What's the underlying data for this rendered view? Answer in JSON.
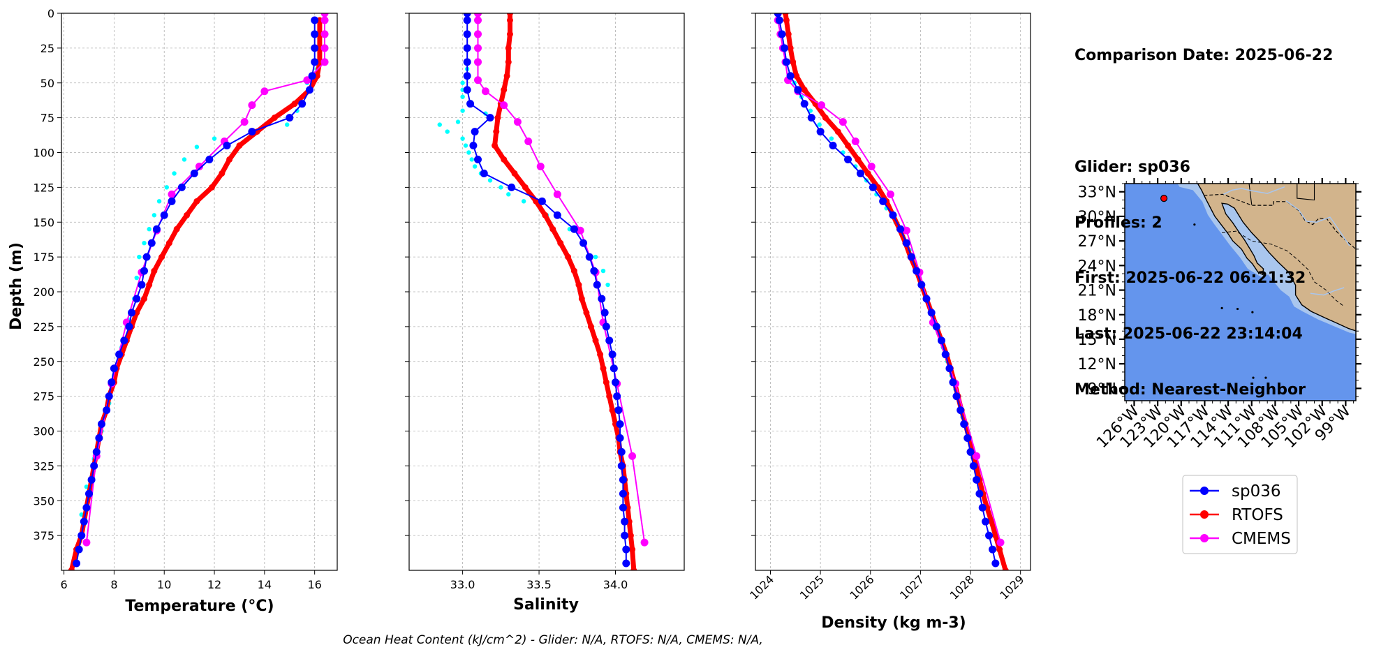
{
  "info": {
    "line1": "Comparison Date: 2025-06-22",
    "line2": "Glider: sp036",
    "line3": "Profiles: 2",
    "line4": "First: 2025-06-22 06:21:32",
    "line5": "Last: 2025-06-22 23:14:04",
    "line6": "Method: Nearest-Neighbor"
  },
  "footer": "Ocean Heat Content (kJ/cm^2) - Glider: N/A,  RTOFS: N/A,  CMEMS: N/A,",
  "colors": {
    "glider": "#0000ff",
    "glider_raw": "#00ffff",
    "rtofs": "#ff0000",
    "cmems": "#ff00ff",
    "ocean": "#6495ed",
    "shelf": "#a9c6ee",
    "land": "#d2b48c"
  },
  "legend": [
    {
      "label": "sp036",
      "color": "#0000ff"
    },
    {
      "label": "RTOFS",
      "color": "#ff0000"
    },
    {
      "label": "CMEMS",
      "color": "#ff00ff"
    }
  ],
  "chart_data": [
    {
      "type": "line",
      "xlabel": "Temperature (°C)",
      "ylabel": "Depth (m)",
      "xlim": [
        5.9,
        16.9
      ],
      "ylim": [
        400,
        0
      ],
      "xticks": [
        6,
        8,
        10,
        12,
        14,
        16
      ],
      "yticks": [
        0,
        25,
        50,
        75,
        100,
        125,
        150,
        175,
        200,
        225,
        250,
        275,
        300,
        325,
        350,
        375
      ],
      "grid": true,
      "series": [
        {
          "name": "sp036",
          "depth": [
            5,
            15,
            25,
            35,
            45,
            55,
            65,
            75,
            85,
            95,
            105,
            115,
            125,
            135,
            145,
            155,
            165,
            175,
            185,
            195,
            205,
            215,
            225,
            235,
            245,
            255,
            265,
            275,
            285,
            295,
            305,
            315,
            325,
            335,
            345,
            355,
            365,
            375,
            385,
            395
          ],
          "values": [
            16.0,
            16.0,
            16.0,
            16.0,
            15.9,
            15.8,
            15.5,
            15.0,
            13.5,
            12.5,
            11.8,
            11.2,
            10.7,
            10.3,
            10.0,
            9.7,
            9.5,
            9.3,
            9.2,
            9.1,
            8.9,
            8.7,
            8.6,
            8.4,
            8.2,
            8.0,
            7.9,
            7.8,
            7.7,
            7.5,
            7.4,
            7.3,
            7.2,
            7.1,
            7.0,
            6.9,
            6.8,
            6.7,
            6.6,
            6.5
          ]
        },
        {
          "name": "RTOFS",
          "depth": [
            5,
            15,
            25,
            35,
            45,
            55,
            65,
            75,
            85,
            95,
            105,
            115,
            125,
            135,
            145,
            155,
            165,
            175,
            185,
            195,
            205,
            215,
            225,
            235,
            245,
            255,
            265,
            275,
            285,
            295,
            305,
            315,
            325,
            335,
            345,
            355,
            365,
            375,
            385,
            400
          ],
          "values": [
            16.2,
            16.2,
            16.2,
            16.2,
            16.1,
            15.8,
            15.2,
            14.4,
            13.7,
            13.0,
            12.6,
            12.3,
            11.9,
            11.3,
            10.9,
            10.5,
            10.2,
            9.9,
            9.6,
            9.4,
            9.2,
            8.9,
            8.7,
            8.5,
            8.3,
            8.1,
            8.0,
            7.8,
            7.7,
            7.5,
            7.4,
            7.3,
            7.2,
            7.1,
            7.0,
            6.9,
            6.8,
            6.7,
            6.5,
            6.3
          ]
        },
        {
          "name": "CMEMS",
          "depth": [
            0,
            5,
            15,
            25,
            35,
            48,
            56,
            66,
            78,
            92,
            110,
            130,
            156,
            186,
            222,
            266,
            318,
            380
          ],
          "values": [
            16.4,
            16.4,
            16.4,
            16.4,
            16.4,
            15.7,
            14.0,
            13.5,
            13.2,
            12.4,
            11.4,
            10.3,
            9.7,
            9.1,
            8.5,
            7.9,
            7.3,
            6.9
          ]
        },
        {
          "name": "sp036 raw",
          "depth": [
            40,
            50,
            60,
            70,
            80,
            90,
            96,
            105,
            115,
            125,
            135,
            145,
            155,
            165,
            175,
            190,
            205,
            220,
            240,
            260,
            280,
            300,
            320,
            340,
            360
          ],
          "values": [
            16.1,
            15.7,
            15.5,
            15.3,
            14.9,
            12.0,
            11.3,
            10.8,
            10.4,
            10.1,
            9.8,
            9.6,
            9.4,
            9.2,
            9.0,
            8.9,
            8.8,
            8.6,
            8.3,
            8.0,
            7.8,
            7.5,
            7.2,
            6.9,
            6.7
          ]
        }
      ]
    },
    {
      "type": "line",
      "xlabel": "Salinity",
      "ylabel": "",
      "xlim": [
        32.65,
        34.45
      ],
      "ylim": [
        400,
        0
      ],
      "xticks": [
        33.0,
        33.5,
        34.0
      ],
      "grid": true,
      "series": [
        {
          "name": "sp036",
          "depth": [
            0,
            5,
            15,
            25,
            35,
            45,
            55,
            65,
            75,
            85,
            95,
            105,
            115,
            125,
            135,
            145,
            155,
            165,
            175,
            185,
            195,
            205,
            215,
            225,
            235,
            245,
            255,
            265,
            275,
            285,
            295,
            305,
            315,
            325,
            335,
            345,
            355,
            365,
            375,
            385,
            395
          ],
          "values": [
            33.03,
            33.03,
            33.03,
            33.03,
            33.03,
            33.03,
            33.03,
            33.05,
            33.18,
            33.08,
            33.07,
            33.1,
            33.14,
            33.32,
            33.52,
            33.62,
            33.73,
            33.79,
            33.83,
            33.86,
            33.88,
            33.91,
            33.93,
            33.94,
            33.96,
            33.98,
            33.99,
            34.0,
            34.01,
            34.02,
            34.03,
            34.03,
            34.04,
            34.04,
            34.05,
            34.05,
            34.05,
            34.06,
            34.06,
            34.07,
            34.07
          ]
        },
        {
          "name": "RTOFS",
          "depth": [
            0,
            5,
            15,
            25,
            35,
            45,
            55,
            65,
            75,
            85,
            95,
            105,
            115,
            125,
            135,
            145,
            155,
            165,
            175,
            185,
            195,
            205,
            215,
            225,
            235,
            245,
            255,
            265,
            275,
            285,
            295,
            305,
            315,
            325,
            335,
            345,
            355,
            365,
            375,
            385,
            400
          ],
          "values": [
            33.31,
            33.31,
            33.31,
            33.3,
            33.3,
            33.29,
            33.27,
            33.25,
            33.23,
            33.22,
            33.21,
            33.27,
            33.34,
            33.41,
            33.48,
            33.54,
            33.59,
            33.64,
            33.69,
            33.73,
            33.76,
            33.78,
            33.81,
            33.84,
            33.87,
            33.9,
            33.92,
            33.94,
            33.96,
            33.98,
            34.0,
            34.02,
            34.03,
            34.05,
            34.06,
            34.07,
            34.08,
            34.09,
            34.1,
            34.11,
            34.12
          ]
        },
        {
          "name": "CMEMS",
          "depth": [
            0,
            5,
            15,
            25,
            35,
            48,
            56,
            66,
            78,
            92,
            110,
            130,
            156,
            186,
            222,
            266,
            318,
            380
          ],
          "values": [
            33.1,
            33.1,
            33.1,
            33.1,
            33.1,
            33.1,
            33.15,
            33.27,
            33.36,
            33.43,
            33.51,
            33.62,
            33.77,
            33.87,
            33.92,
            34.01,
            34.11,
            34.19
          ]
        },
        {
          "name": "sp036 raw",
          "depth": [
            40,
            50,
            55,
            60,
            70,
            72,
            78,
            80,
            85,
            90,
            95,
            100,
            105,
            110,
            115,
            120,
            125,
            130,
            135,
            145,
            155,
            165,
            175,
            185,
            195
          ],
          "values": [
            33.03,
            33.0,
            33.0,
            33.0,
            33.0,
            33.15,
            32.97,
            32.85,
            32.9,
            33.0,
            33.02,
            33.04,
            33.06,
            33.08,
            33.12,
            33.18,
            33.25,
            33.3,
            33.4,
            33.55,
            33.7,
            33.8,
            33.87,
            33.92,
            33.95
          ]
        }
      ]
    },
    {
      "type": "line",
      "xlabel": "Density (kg m-3)",
      "ylabel": "",
      "xlim": [
        1023.7,
        1029.2
      ],
      "ylim": [
        400,
        0
      ],
      "xticks": [
        1024,
        1025,
        1026,
        1027,
        1028,
        1029
      ],
      "grid": true,
      "series": [
        {
          "name": "sp036",
          "depth": [
            0,
            5,
            15,
            25,
            35,
            45,
            55,
            65,
            75,
            85,
            95,
            105,
            115,
            125,
            135,
            145,
            155,
            165,
            175,
            185,
            195,
            205,
            215,
            225,
            235,
            245,
            255,
            265,
            275,
            285,
            295,
            305,
            315,
            325,
            335,
            345,
            355,
            365,
            375,
            385,
            395
          ],
          "values": [
            1024.15,
            1024.18,
            1024.23,
            1024.28,
            1024.32,
            1024.4,
            1024.55,
            1024.68,
            1024.82,
            1025.0,
            1025.25,
            1025.55,
            1025.8,
            1026.05,
            1026.25,
            1026.45,
            1026.6,
            1026.72,
            1026.82,
            1026.92,
            1027.02,
            1027.12,
            1027.22,
            1027.32,
            1027.42,
            1027.5,
            1027.58,
            1027.65,
            1027.72,
            1027.8,
            1027.87,
            1027.94,
            1028.0,
            1028.06,
            1028.12,
            1028.18,
            1028.24,
            1028.3,
            1028.37,
            1028.44,
            1028.5
          ]
        },
        {
          "name": "RTOFS",
          "depth": [
            0,
            5,
            15,
            25,
            35,
            45,
            55,
            65,
            75,
            85,
            95,
            105,
            115,
            125,
            135,
            145,
            155,
            165,
            175,
            185,
            195,
            205,
            215,
            225,
            235,
            245,
            255,
            265,
            275,
            285,
            295,
            305,
            315,
            325,
            335,
            345,
            355,
            365,
            375,
            385,
            400
          ],
          "values": [
            1024.3,
            1024.32,
            1024.36,
            1024.4,
            1024.45,
            1024.52,
            1024.68,
            1024.9,
            1025.1,
            1025.35,
            1025.55,
            1025.75,
            1025.95,
            1026.15,
            1026.32,
            1026.45,
            1026.58,
            1026.7,
            1026.8,
            1026.92,
            1027.02,
            1027.12,
            1027.22,
            1027.32,
            1027.42,
            1027.52,
            1027.6,
            1027.68,
            1027.75,
            1027.82,
            1027.9,
            1027.97,
            1028.04,
            1028.11,
            1028.18,
            1028.25,
            1028.33,
            1028.42,
            1028.5,
            1028.58,
            1028.7
          ]
        },
        {
          "name": "CMEMS",
          "depth": [
            0,
            5,
            15,
            25,
            35,
            48,
            56,
            66,
            78,
            92,
            110,
            130,
            156,
            186,
            222,
            266,
            318,
            380
          ],
          "values": [
            1024.15,
            1024.15,
            1024.2,
            1024.25,
            1024.3,
            1024.35,
            1024.55,
            1025.02,
            1025.45,
            1025.7,
            1026.02,
            1026.4,
            1026.72,
            1026.98,
            1027.25,
            1027.7,
            1028.12,
            1028.6
          ]
        },
        {
          "name": "sp036 raw",
          "depth": [
            50,
            60,
            70,
            80,
            90,
            100,
            110,
            120,
            130,
            140,
            150,
            160,
            170,
            180,
            190,
            200,
            210,
            220,
            230,
            240,
            250,
            260,
            270,
            280,
            290
          ],
          "values": [
            1024.48,
            1024.62,
            1024.8,
            1024.98,
            1025.22,
            1025.45,
            1025.7,
            1025.92,
            1026.12,
            1026.32,
            1026.5,
            1026.65,
            1026.78,
            1026.88,
            1026.98,
            1027.08,
            1027.18,
            1027.27,
            1027.36,
            1027.45,
            1027.54,
            1027.62,
            1027.7,
            1027.78,
            1027.84
          ]
        }
      ]
    },
    {
      "type": "map",
      "lat_ticks": [
        "33°N",
        "30°N",
        "27°N",
        "24°N",
        "21°N",
        "18°N",
        "15°N",
        "12°N",
        "9°N"
      ],
      "lon_ticks": [
        "126°W",
        "123°W",
        "120°W",
        "117°W",
        "114°W",
        "111°W",
        "108°W",
        "105°W",
        "102°W",
        "99°W"
      ],
      "lat_range": [
        7.5,
        34.0
      ],
      "lon_range": [
        -127.2,
        -97.7
      ],
      "glider_position": {
        "lon": -122.2,
        "lat": 32.2
      }
    }
  ]
}
